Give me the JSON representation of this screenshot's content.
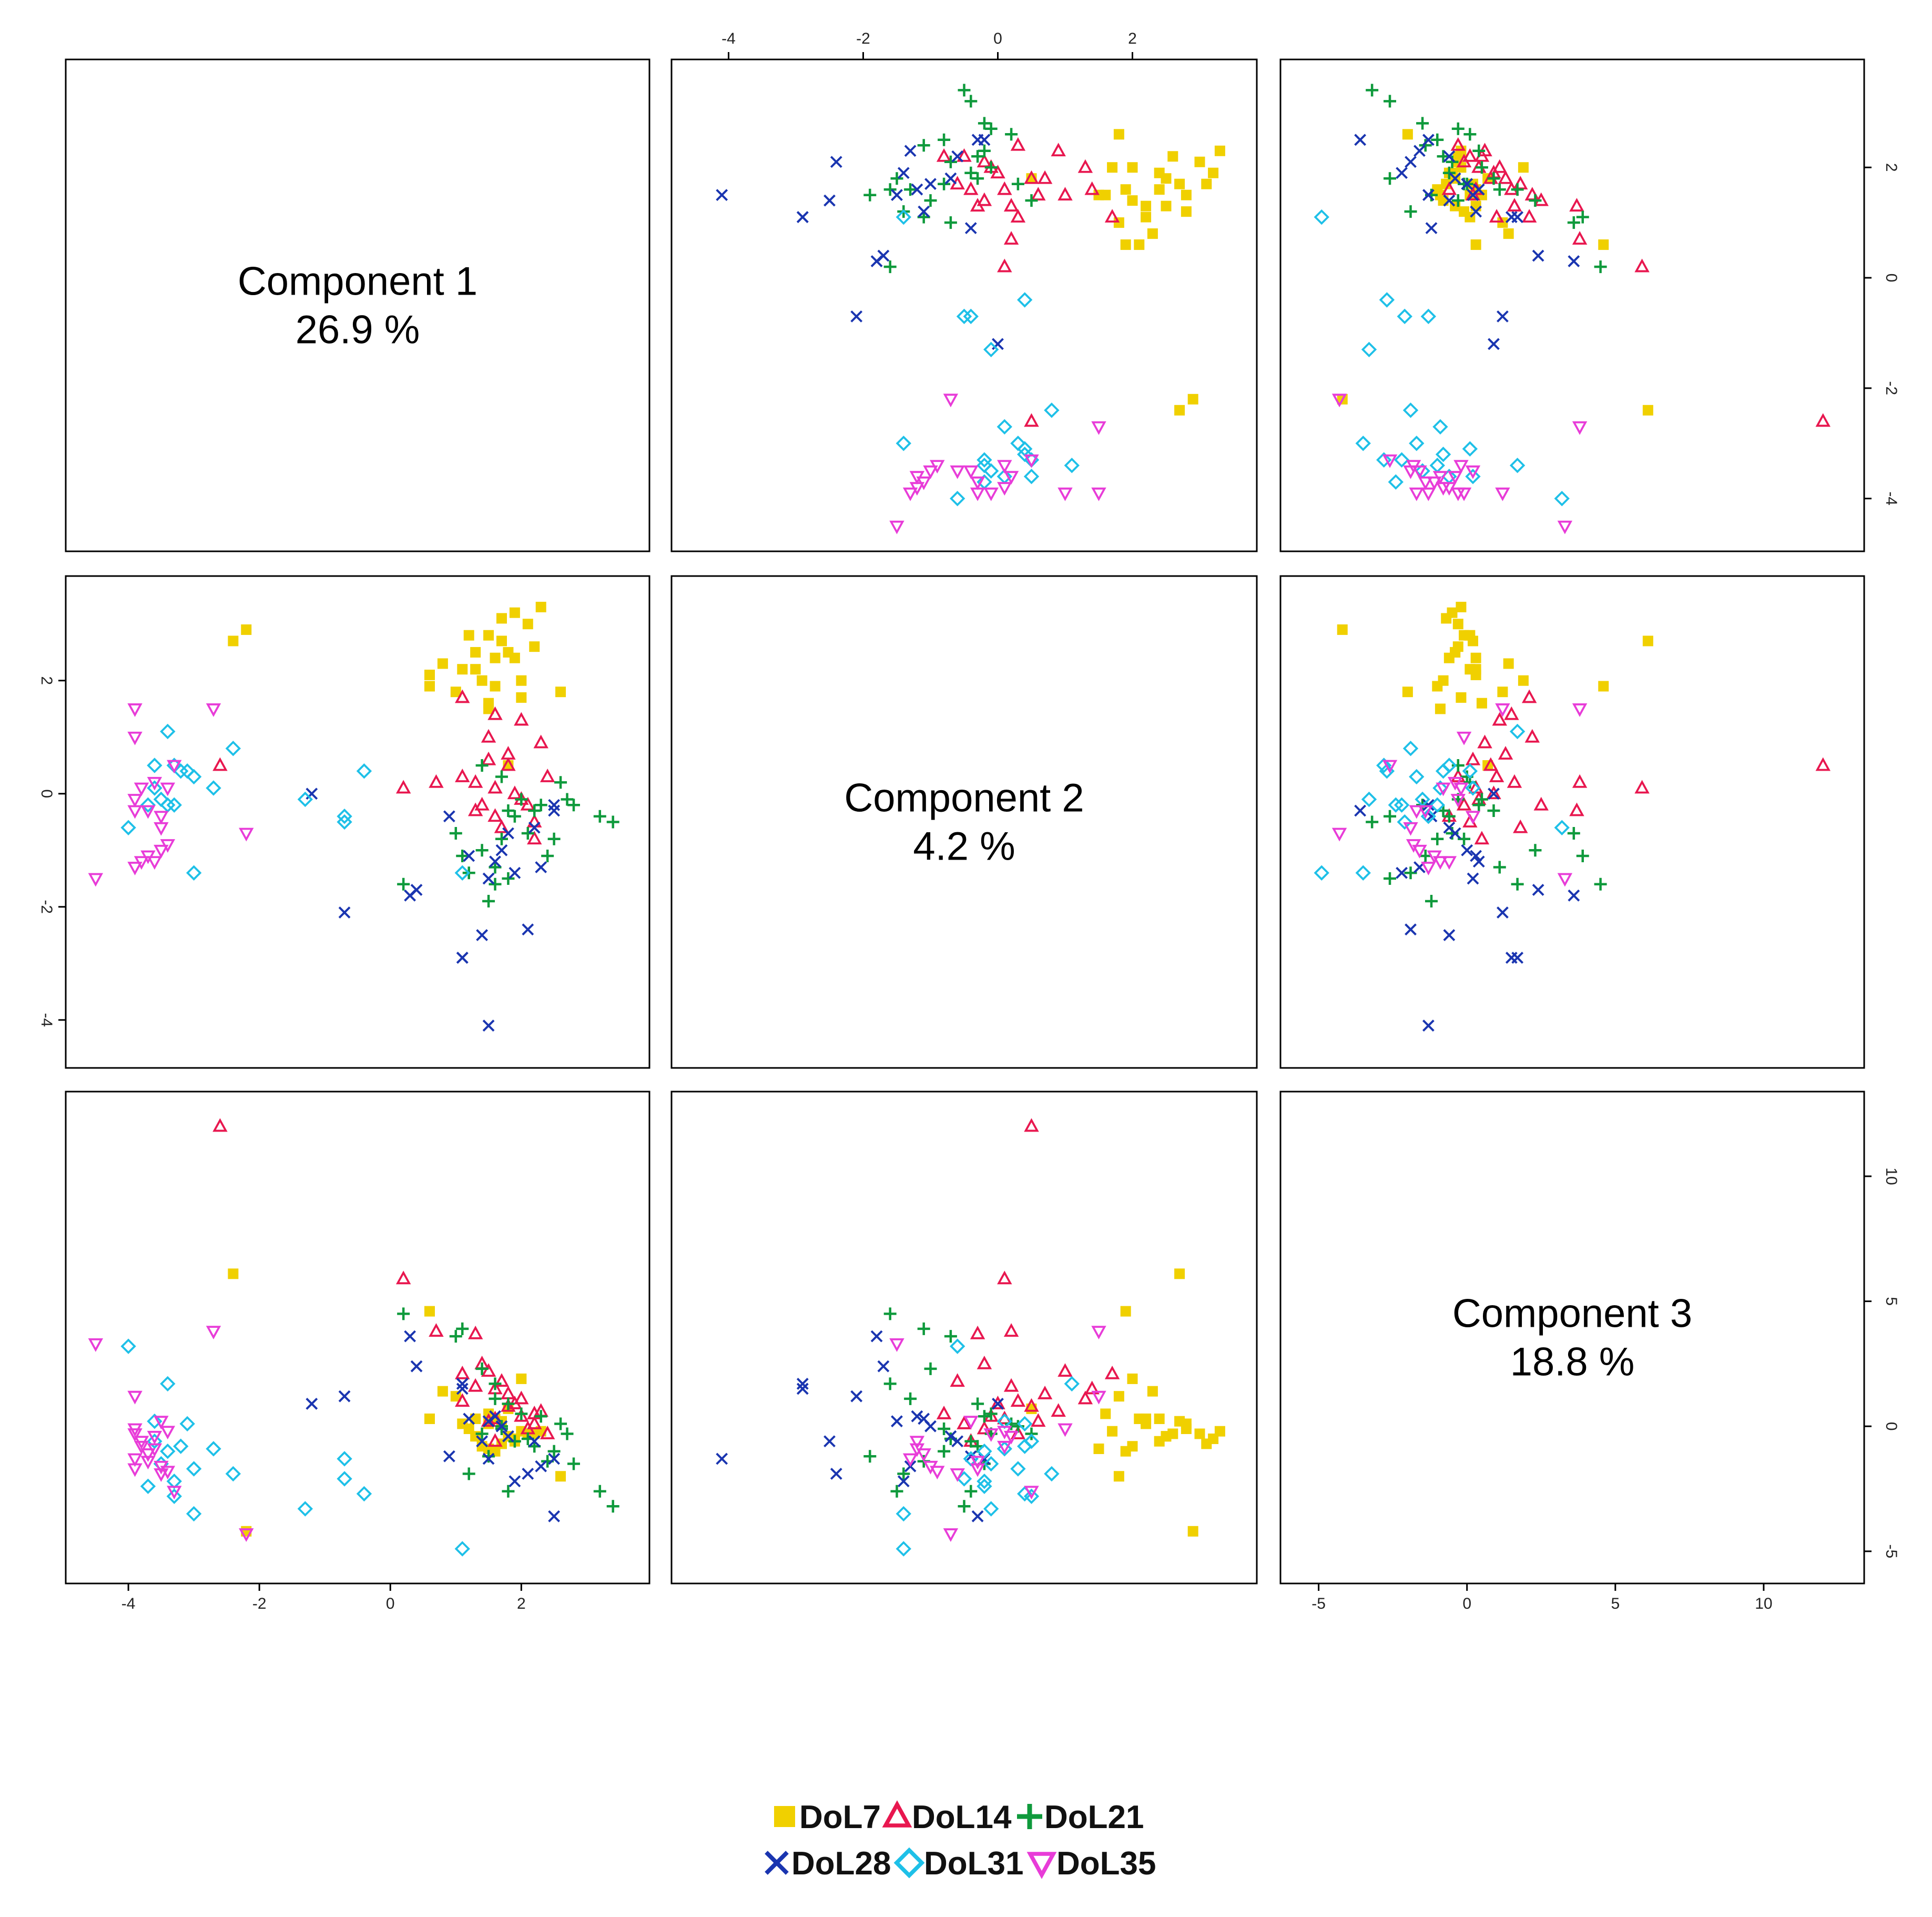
{
  "chart_data": {
    "type": "scatter",
    "variant": "pairs-scatterplot-matrix",
    "variables": [
      {
        "name": "Component 1",
        "variance_label": "26.9 %",
        "range": [
          -4.6,
          3.6
        ],
        "ticks": [
          "-4",
          "-2",
          "0",
          "2"
        ],
        "tick_values": [
          -4,
          -2,
          0,
          2
        ]
      },
      {
        "name": "Component 2",
        "variance_label": "4.2 %",
        "range": [
          -4.5,
          3.5
        ],
        "ticks": [
          "-4",
          "-2",
          "0",
          "2"
        ],
        "tick_values": [
          -4,
          -2,
          0,
          2
        ]
      },
      {
        "name": "Component 3",
        "variance_label": "18.8 %",
        "range": [
          -5.5,
          12.6
        ],
        "ticks": [
          "-5",
          "0",
          "5",
          "10"
        ],
        "tick_values": [
          -5,
          0,
          5,
          10
        ]
      }
    ],
    "legend": {
      "position": "bottom-center",
      "rows": [
        [
          "DoL7",
          "DoL14",
          "DoL21"
        ],
        [
          "DoL28",
          "DoL31",
          "DoL35"
        ]
      ]
    },
    "series": [
      {
        "name": "DoL7",
        "marker": "square-filled",
        "color": "#f0d000",
        "points": [
          [
            1.8,
            2.5,
            -0.4
          ],
          [
            1.7,
            2.7,
            0.2
          ],
          [
            1.9,
            3.2,
            -0.5
          ],
          [
            2.1,
            3.0,
            -0.3
          ],
          [
            2.3,
            3.3,
            -0.2
          ],
          [
            1.3,
            2.2,
            0.3
          ],
          [
            1.5,
            2.8,
            0.1
          ],
          [
            1.0,
            1.8,
            1.2
          ],
          [
            1.6,
            1.9,
            -1.0
          ],
          [
            1.9,
            2.4,
            -0.6
          ],
          [
            2.0,
            1.7,
            -0.2
          ],
          [
            0.6,
            2.1,
            0.3
          ],
          [
            1.5,
            1.6,
            0.5
          ],
          [
            2.6,
            1.8,
            -2.0
          ],
          [
            1.7,
            3.1,
            -0.7
          ],
          [
            1.3,
            2.5,
            -0.4
          ],
          [
            1.1,
            2.2,
            0.1
          ],
          [
            1.4,
            2.0,
            -0.8
          ],
          [
            1.8,
            0.5,
            0.7
          ],
          [
            -2.4,
            2.7,
            6.1
          ],
          [
            -2.2,
            2.9,
            -4.2
          ],
          [
            0.6,
            1.9,
            4.6
          ],
          [
            1.6,
            2.4,
            0.3
          ],
          [
            2.2,
            2.6,
            -0.3
          ],
          [
            0.8,
            2.3,
            1.4
          ],
          [
            1.5,
            1.5,
            -0.9
          ],
          [
            2.0,
            2.0,
            1.9
          ],
          [
            1.2,
            2.8,
            -0.1
          ]
        ]
      },
      {
        "name": "DoL14",
        "marker": "triangle-up-open",
        "color": "#e8174f",
        "points": [
          [
            1.1,
            1.7,
            2.1
          ],
          [
            1.6,
            1.4,
            1.5
          ],
          [
            2.0,
            1.3,
            1.1
          ],
          [
            2.3,
            0.9,
            0.6
          ],
          [
            1.5,
            0.6,
            0.2
          ],
          [
            1.3,
            0.2,
            1.6
          ],
          [
            1.8,
            0.5,
            0.8
          ],
          [
            1.6,
            0.1,
            0.3
          ],
          [
            2.1,
            -0.2,
            -0.1
          ],
          [
            1.9,
            0.0,
            0.9
          ],
          [
            2.4,
            0.3,
            -0.3
          ],
          [
            2.2,
            -0.5,
            0.1
          ],
          [
            0.2,
            0.1,
            5.9
          ],
          [
            0.7,
            0.2,
            3.8
          ],
          [
            1.3,
            -0.3,
            3.7
          ],
          [
            -2.6,
            0.5,
            12.0
          ],
          [
            1.7,
            -0.6,
            1.8
          ],
          [
            2.0,
            -0.1,
            0.4
          ],
          [
            1.5,
            1.0,
            2.2
          ],
          [
            1.1,
            0.3,
            1.0
          ],
          [
            1.4,
            -0.2,
            2.5
          ],
          [
            2.2,
            -0.8,
            0.5
          ],
          [
            1.8,
            0.7,
            1.3
          ],
          [
            1.6,
            -0.4,
            -0.6
          ]
        ]
      },
      {
        "name": "DoL21",
        "marker": "plus",
        "color": "#0f9a3c",
        "points": [
          [
            3.4,
            -0.5,
            -3.2
          ],
          [
            3.2,
            -0.4,
            -2.6
          ],
          [
            2.8,
            -0.2,
            -1.5
          ],
          [
            2.6,
            0.2,
            0.1
          ],
          [
            2.5,
            -0.8,
            -1.0
          ],
          [
            2.7,
            -0.1,
            -0.3
          ],
          [
            2.2,
            -0.3,
            -0.8
          ],
          [
            2.4,
            -1.1,
            -1.4
          ],
          [
            2.0,
            -0.1,
            0.5
          ],
          [
            1.7,
            -0.8,
            -0.1
          ],
          [
            1.5,
            -1.9,
            -1.2
          ],
          [
            1.8,
            -1.5,
            -2.6
          ],
          [
            1.6,
            -1.3,
            1.1
          ],
          [
            1.4,
            -1.0,
            2.3
          ],
          [
            1.0,
            -0.7,
            3.6
          ],
          [
            1.8,
            -0.3,
            0.9
          ],
          [
            1.6,
            -1.6,
            1.7
          ],
          [
            0.2,
            -1.6,
            4.5
          ],
          [
            1.1,
            -1.1,
            3.9
          ],
          [
            1.4,
            0.5,
            -0.3
          ],
          [
            1.9,
            -0.4,
            -0.6
          ],
          [
            2.3,
            -0.2,
            0.4
          ],
          [
            1.2,
            -1.4,
            -1.9
          ],
          [
            2.1,
            -0.7,
            -0.5
          ],
          [
            1.7,
            0.3,
            0.0
          ]
        ]
      },
      {
        "name": "DoL28",
        "marker": "x",
        "color": "#1a35b0",
        "points": [
          [
            1.1,
            -2.9,
            1.5
          ],
          [
            1.1,
            -2.9,
            1.7
          ],
          [
            1.5,
            -4.1,
            -1.3
          ],
          [
            1.4,
            -2.5,
            -0.6
          ],
          [
            1.6,
            -1.2,
            0.4
          ],
          [
            1.2,
            -1.1,
            0.3
          ],
          [
            0.4,
            -1.7,
            2.4
          ],
          [
            0.3,
            -1.8,
            3.6
          ],
          [
            2.1,
            -2.4,
            -1.9
          ],
          [
            1.7,
            -1.0,
            0.0
          ],
          [
            -1.2,
            0.0,
            0.9
          ],
          [
            -0.7,
            -2.1,
            1.2
          ],
          [
            1.9,
            -1.4,
            -2.2
          ],
          [
            2.5,
            -0.3,
            -3.6
          ],
          [
            2.2,
            -0.6,
            -0.6
          ],
          [
            0.9,
            -0.4,
            -1.2
          ],
          [
            2.3,
            -1.3,
            -1.6
          ],
          [
            1.5,
            -1.5,
            0.2
          ],
          [
            1.8,
            -0.7,
            -0.4
          ],
          [
            2.5,
            -0.2,
            -1.3
          ]
        ]
      },
      {
        "name": "DoL31",
        "marker": "diamond-open",
        "color": "#1ec0e8",
        "points": [
          [
            -3.6,
            0.5,
            -0.6
          ],
          [
            -3.4,
            1.1,
            1.7
          ],
          [
            -3.0,
            0.3,
            -1.7
          ],
          [
            -3.7,
            -0.2,
            -2.4
          ],
          [
            -2.4,
            0.8,
            -1.9
          ],
          [
            -4.0,
            -0.6,
            3.2
          ],
          [
            -3.2,
            0.4,
            -0.8
          ],
          [
            -3.5,
            -0.1,
            -1.5
          ],
          [
            -3.3,
            -0.2,
            -2.2
          ],
          [
            -2.7,
            0.1,
            -0.9
          ],
          [
            -3.0,
            -1.4,
            -3.5
          ],
          [
            -1.3,
            -0.1,
            -3.3
          ],
          [
            -0.7,
            -0.4,
            -1.3
          ],
          [
            -0.7,
            -0.5,
            -2.1
          ],
          [
            -0.4,
            0.4,
            -2.7
          ],
          [
            1.1,
            -1.4,
            -4.9
          ],
          [
            -3.6,
            0.1,
            0.2
          ],
          [
            -3.3,
            0.5,
            -2.8
          ],
          [
            -3.1,
            0.4,
            0.1
          ],
          [
            -3.4,
            -0.2,
            -1.0
          ]
        ]
      },
      {
        "name": "DoL35",
        "marker": "triangle-down-open",
        "color": "#e83cd8",
        "points": [
          [
            -3.9,
            1.5,
            1.2
          ],
          [
            -3.9,
            1.0,
            -0.1
          ],
          [
            -4.5,
            -1.5,
            3.3
          ],
          [
            -3.8,
            -1.2,
            -0.6
          ],
          [
            -3.9,
            -1.3,
            -1.3
          ],
          [
            -3.7,
            -0.3,
            -1.4
          ],
          [
            -3.6,
            -1.2,
            -0.9
          ],
          [
            -3.5,
            -1.0,
            -1.6
          ],
          [
            -3.4,
            0.1,
            -0.2
          ],
          [
            -3.5,
            -0.4,
            0.2
          ],
          [
            -3.3,
            0.5,
            -2.6
          ],
          [
            -3.9,
            -0.3,
            -1.7
          ],
          [
            -3.6,
            0.2,
            -0.4
          ],
          [
            -3.8,
            0.1,
            -0.8
          ],
          [
            -2.7,
            1.5,
            3.8
          ],
          [
            -2.2,
            -0.7,
            -4.3
          ],
          [
            -3.4,
            -0.9,
            -1.8
          ],
          [
            -3.7,
            -1.1,
            -1.1
          ],
          [
            -3.9,
            -0.1,
            -0.3
          ],
          [
            -3.5,
            -0.6,
            -1.9
          ]
        ]
      }
    ]
  }
}
